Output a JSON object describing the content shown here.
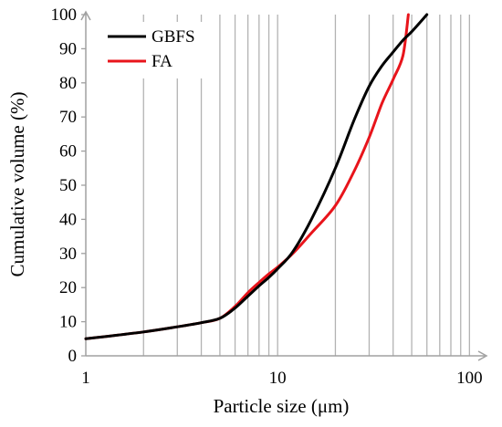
{
  "chart_data": {
    "type": "line",
    "title": "",
    "xlabel": "Particle size (μm)",
    "ylabel": "Cumulative volume (%)",
    "xscale": "log",
    "xlim": [
      1,
      120
    ],
    "ylim": [
      0,
      100
    ],
    "x_tick_labels": [
      "1",
      "10",
      "100"
    ],
    "x_ticks": [
      1,
      10,
      100
    ],
    "y_tick_labels": [
      "0",
      "10",
      "20",
      "30",
      "40",
      "50",
      "60",
      "70",
      "80",
      "90",
      "100"
    ],
    "y_ticks": [
      0,
      10,
      20,
      30,
      40,
      50,
      60,
      70,
      80,
      90,
      100
    ],
    "grid": "vertical minor gridlines",
    "legend_position": "top-left",
    "colors": {
      "GBFS": "#000000",
      "FA": "#e8141b",
      "grid": "#b3b3b3",
      "axis": "#a0a0a0"
    },
    "series": [
      {
        "name": "GBFS",
        "x": [
          1,
          2,
          3,
          4,
          5,
          6,
          7,
          8,
          9,
          10,
          12,
          15,
          20,
          25,
          30,
          35,
          40,
          45,
          50,
          60
        ],
        "y": [
          5,
          7,
          8.5,
          9.7,
          11,
          14,
          17.5,
          20.5,
          23,
          25.5,
          30.5,
          40,
          55,
          69,
          79,
          85,
          89,
          92.5,
          95,
          100
        ]
      },
      {
        "name": "FA",
        "x": [
          1,
          2,
          3,
          4,
          5,
          6,
          7,
          8,
          9,
          10,
          12,
          15,
          20,
          25,
          30,
          35,
          40,
          45,
          48
        ],
        "y": [
          5,
          7,
          8.5,
          9.7,
          11,
          14.5,
          18.5,
          21.5,
          24,
          26,
          30,
          36,
          44,
          54,
          64,
          74,
          81,
          88,
          100
        ]
      }
    ]
  }
}
